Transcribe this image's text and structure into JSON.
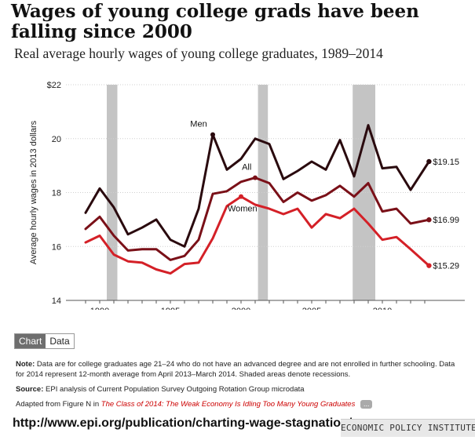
{
  "header": {
    "title": "Wages of young college grads have been falling since 2000",
    "subtitle": "Real average hourly wages of young college graduates, 1989–2014"
  },
  "chart_data": {
    "type": "line",
    "ylabel": "Average hourly wages in 2013 dollars",
    "xlim": [
      1989,
      2014
    ],
    "ylim": [
      14,
      22
    ],
    "x_ticks": [
      1990,
      1995,
      2000,
      2005,
      2010
    ],
    "x_tick_labels": [
      "1990",
      "1995",
      "2000",
      "2005",
      "2010"
    ],
    "y_ticks": [
      14,
      16,
      18,
      20,
      22
    ],
    "y_tick_labels": [
      "14",
      "16",
      "18",
      "20",
      "$22"
    ],
    "grid": "horizontal",
    "recessions": [
      [
        1990.5,
        1991.25
      ],
      [
        2001.2,
        2001.9
      ],
      [
        2007.9,
        2009.5
      ]
    ],
    "x": [
      1989,
      1990,
      1991,
      1992,
      1993,
      1994,
      1995,
      1996,
      1997,
      1998,
      1999,
      2000,
      2001,
      2002,
      2003,
      2004,
      2005,
      2006,
      2007,
      2008,
      2009,
      2010,
      2011,
      2012,
      2013.3
    ],
    "series": [
      {
        "name": "Men",
        "color": "#2a0a0e",
        "end_label": "$19.15",
        "values": [
          17.25,
          18.15,
          17.45,
          16.45,
          16.7,
          17.0,
          16.25,
          16.0,
          17.4,
          20.15,
          18.85,
          19.25,
          20.0,
          19.8,
          18.5,
          18.8,
          19.15,
          18.85,
          19.95,
          18.6,
          20.5,
          18.9,
          18.95,
          18.1,
          19.15
        ]
      },
      {
        "name": "All",
        "color": "#7a1018",
        "end_label": "$16.99",
        "values": [
          16.65,
          17.1,
          16.4,
          15.85,
          15.9,
          15.9,
          15.5,
          15.65,
          16.25,
          17.95,
          18.05,
          18.4,
          18.55,
          18.35,
          17.65,
          18.0,
          17.7,
          17.9,
          18.25,
          17.85,
          18.35,
          17.3,
          17.4,
          16.85,
          16.99
        ]
      },
      {
        "name": "Women",
        "color": "#d42027",
        "end_label": "$15.29",
        "values": [
          16.15,
          16.4,
          15.7,
          15.45,
          15.4,
          15.15,
          15.0,
          15.35,
          15.4,
          16.3,
          17.5,
          17.85,
          17.55,
          17.4,
          17.2,
          17.4,
          16.7,
          17.2,
          17.05,
          17.4,
          16.85,
          16.25,
          16.35,
          15.9,
          15.29
        ]
      }
    ]
  },
  "controls": {
    "chart_tab": "Chart",
    "data_tab": "Data"
  },
  "notes": {
    "note_label": "Note:",
    "note_text": "Data are for college graduates age 21–24 who do not have an advanced degree and are not enrolled in further schooling. Data for 2014 represent 12-month average from April 2013–March 2014. Shaded areas denote recessions.",
    "source_label": "Source:",
    "source_text": "EPI analysis of Current Population Survey Outgoing Rotation Group microdata",
    "adapted_prefix": "Adapted from Figure N in",
    "adapted_title": "The Class of 2014: The Weak Economy Is Idling Too Many Young Graduates",
    "more_label": "..."
  },
  "footer": {
    "url": "http://www.epi.org/publication/charting-wage-stagnation/",
    "brand": "ECONOMIC POLICY INSTITUTE"
  }
}
